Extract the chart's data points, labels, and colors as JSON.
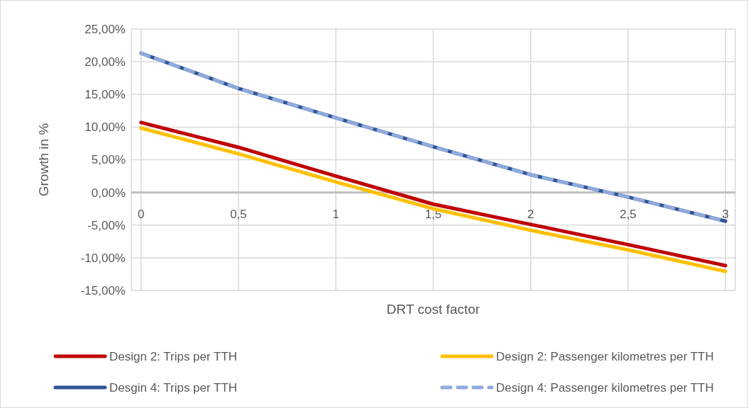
{
  "chart_data": {
    "type": "line",
    "xlabel": "DRT cost factor",
    "ylabel": "Growth in %",
    "x": [
      0,
      0.5,
      1,
      1.5,
      2,
      2.5,
      3
    ],
    "series": [
      {
        "name": "Design 2: Trips per TTH",
        "color": "#c00000",
        "values": [
          10.7,
          6.9,
          2.5,
          -1.8,
          -4.9,
          -8.0,
          -11.2
        ]
      },
      {
        "name": "Design 2: Passenger kilometres per TTH",
        "color": "#ffc000",
        "values": [
          9.85,
          5.9,
          1.6,
          -2.5,
          -5.8,
          -8.8,
          -12.1
        ]
      },
      {
        "name": "Desgin 4: Trips per TTH",
        "color": "#2f5597",
        "values": [
          21.3,
          15.9,
          11.4,
          7.0,
          2.7,
          -0.7,
          -4.4
        ]
      },
      {
        "name": "Design 4: Passenger kilometres per TTH",
        "color": "#8faadc",
        "line_style": "dashed",
        "values": [
          21.3,
          15.9,
          11.4,
          7.0,
          2.7,
          -0.7,
          -4.4
        ]
      }
    ],
    "xlim": [
      -0.05,
      3.05
    ],
    "xticks": [
      {
        "value": 0,
        "label": "0"
      },
      {
        "value": 0.5,
        "label": "0,5"
      },
      {
        "value": 1,
        "label": "1"
      },
      {
        "value": 1.5,
        "label": "1,5"
      },
      {
        "value": 2,
        "label": "2"
      },
      {
        "value": 2.5,
        "label": "2,5"
      },
      {
        "value": 3,
        "label": "3"
      }
    ],
    "ylim": [
      -15,
      25
    ],
    "yticks": [
      {
        "value": -15,
        "label": "-15,00%"
      },
      {
        "value": -10,
        "label": "-10,00%"
      },
      {
        "value": -5,
        "label": "-5,00%"
      },
      {
        "value": 0,
        "label": "0,00%"
      },
      {
        "value": 5,
        "label": "5,00%"
      },
      {
        "value": 10,
        "label": "10,00%"
      },
      {
        "value": 15,
        "label": "15,00%"
      },
      {
        "value": 20,
        "label": "20,00%"
      },
      {
        "value": 25,
        "label": "25,00%"
      }
    ],
    "grid": true,
    "legend": "bottom",
    "marker": "none",
    "line_style": "solid"
  }
}
